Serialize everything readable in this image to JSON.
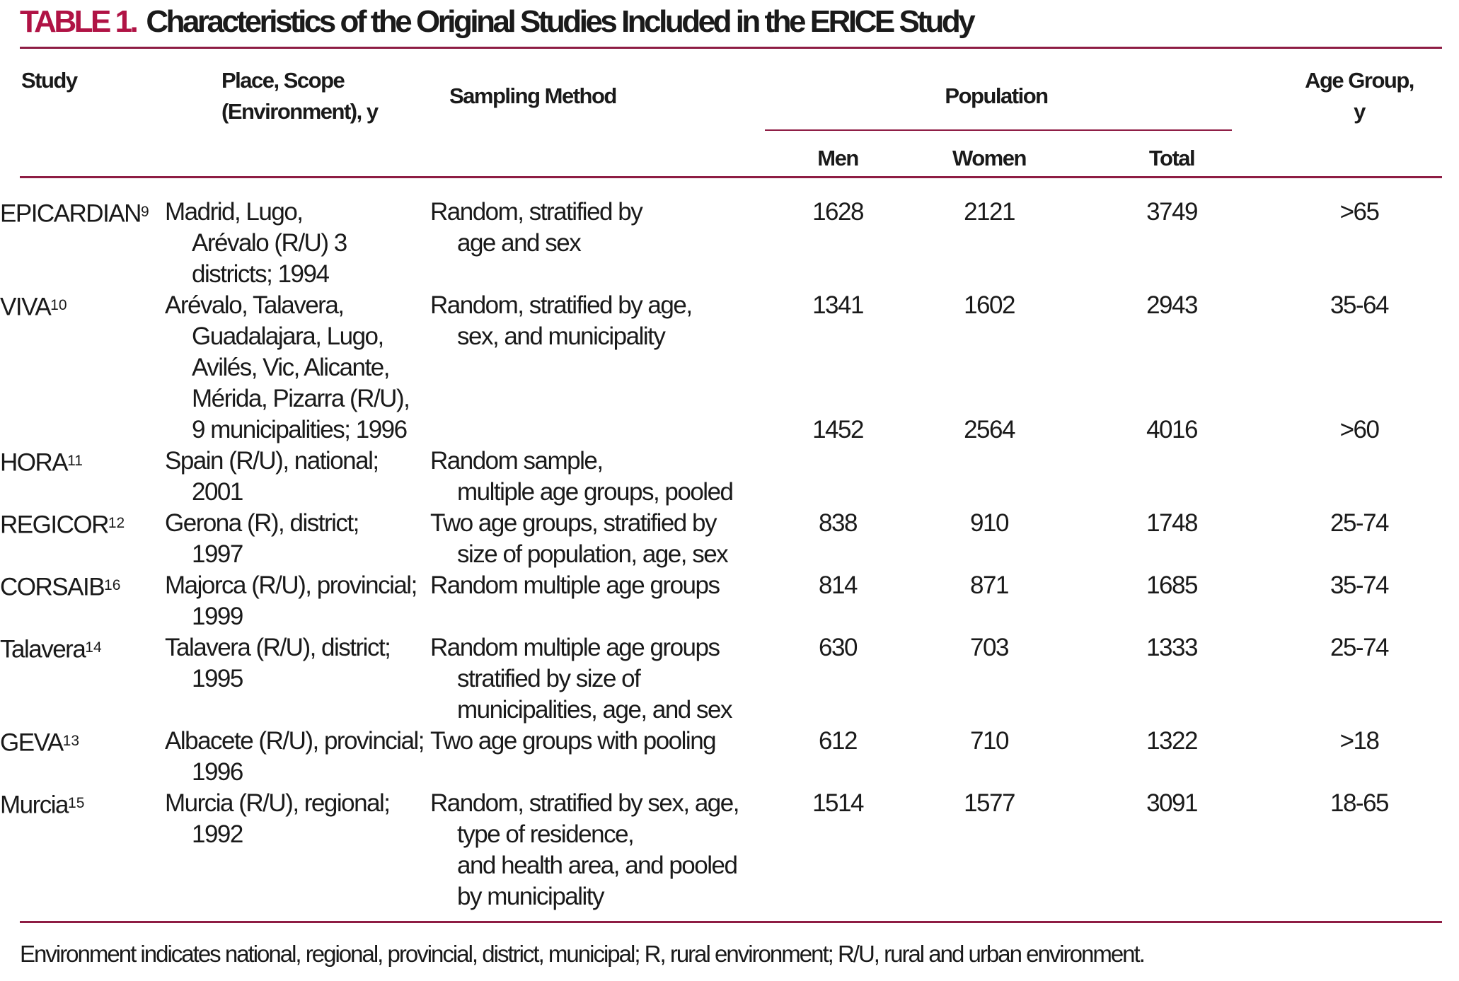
{
  "title": {
    "label": "TABLE 1.",
    "text": "Characteristics of the Original Studies Included in the ERICE Study"
  },
  "colors": {
    "accent": "#B01345",
    "rule": "#8E1D44",
    "text": "#1A1A1A"
  },
  "header": {
    "study": "Study",
    "place": [
      "Place, Scope",
      "(Environment), y"
    ],
    "sampling": "Sampling Method",
    "population": "Population",
    "sub": [
      "Men",
      "Women",
      "Total"
    ],
    "age": [
      "Age Group,",
      "y"
    ]
  },
  "rows": [
    {
      "study": "EPICARDIAN",
      "ref": "9",
      "place": [
        "Madrid, Lugo,",
        "Arévalo (R/U) 3",
        "districts; 1994"
      ],
      "sampling": [
        "Random, stratified by",
        "age and sex"
      ],
      "men": "1628",
      "women": "2121",
      "total": "3749",
      "age": ">65",
      "numbers_line_offset": 0
    },
    {
      "study": "VIVA",
      "ref": "10",
      "place": [
        "Arévalo, Talavera,",
        "Guadalajara, Lugo,",
        "Avilés, Vic, Alicante,",
        "Mérida, Pizarra (R/U),",
        "9 municipalities; 1996"
      ],
      "sampling": [
        "Random, stratified by age,",
        "sex, and municipality"
      ],
      "men": "1341",
      "women": "1602",
      "total": "2943",
      "age": "35-64",
      "numbers_line_offset": 0
    },
    {
      "study": "HORA",
      "ref": "11",
      "place": [
        "Spain (R/U), national;",
        "2001"
      ],
      "sampling": [
        "Random sample,",
        "multiple age groups, pooled"
      ],
      "men": "1452",
      "women": "2564",
      "total": "4016",
      "age": ">60",
      "numbers_line_offset": -1
    },
    {
      "study": "REGICOR",
      "ref": "12",
      "place": [
        "Gerona (R), district;",
        "1997"
      ],
      "sampling": [
        "Two age groups, stratified by",
        "size of population, age, sex"
      ],
      "men": "838",
      "women": "910",
      "total": "1748",
      "age": "25-74",
      "numbers_line_offset": 0
    },
    {
      "study": "CORSAIB",
      "ref": "16",
      "place": [
        "Majorca (R/U), provincial;",
        "1999"
      ],
      "sampling": [
        "Random multiple age groups"
      ],
      "men": "814",
      "women": "871",
      "total": "1685",
      "age": "35-74",
      "numbers_line_offset": 0
    },
    {
      "study": "Talavera",
      "ref": "14",
      "place": [
        "Talavera (R/U), district;",
        "1995"
      ],
      "sampling": [
        "Random multiple age groups",
        "stratified by size of",
        "municipalities, age, and sex"
      ],
      "men": "630",
      "women": "703",
      "total": "1333",
      "age": "25-74",
      "numbers_line_offset": 0
    },
    {
      "study": "GEVA",
      "ref": "13",
      "place": [
        "Albacete (R/U), provincial;",
        "1996"
      ],
      "sampling": [
        "Two age groups with pooling"
      ],
      "men": "612",
      "women": "710",
      "total": "1322",
      "age": ">18",
      "numbers_line_offset": 0
    },
    {
      "study": "Murcia",
      "ref": "15",
      "place": [
        "Murcia (R/U), regional;",
        "1992"
      ],
      "sampling": [
        "Random, stratified by sex, age,",
        "type of residence,",
        "and health area, and pooled",
        "by municipality"
      ],
      "men": "1514",
      "women": "1577",
      "total": "3091",
      "age": "18-65",
      "numbers_line_offset": 0
    }
  ],
  "footnote": "Environment indicates national, regional, provincial, district, municipal; R, rural environment; R/U, rural and urban environment."
}
